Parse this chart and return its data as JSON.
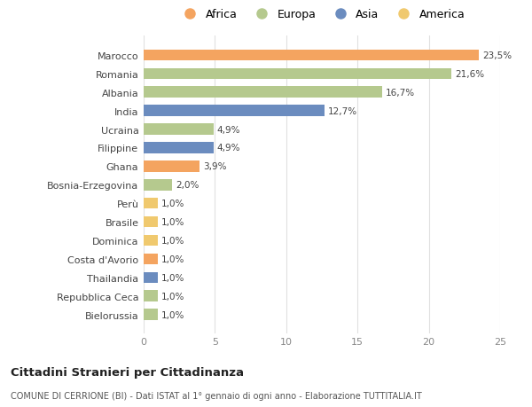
{
  "categories": [
    "Marocco",
    "Romania",
    "Albania",
    "India",
    "Ucraina",
    "Filippine",
    "Ghana",
    "Bosnia-Erzegovina",
    "Perù",
    "Brasile",
    "Dominica",
    "Costa d'Avorio",
    "Thailandia",
    "Repubblica Ceca",
    "Bielorussia"
  ],
  "values": [
    23.5,
    21.6,
    16.7,
    12.7,
    4.9,
    4.9,
    3.9,
    2.0,
    1.0,
    1.0,
    1.0,
    1.0,
    1.0,
    1.0,
    1.0
  ],
  "labels": [
    "23,5%",
    "21,6%",
    "16,7%",
    "12,7%",
    "4,9%",
    "4,9%",
    "3,9%",
    "2,0%",
    "1,0%",
    "1,0%",
    "1,0%",
    "1,0%",
    "1,0%",
    "1,0%",
    "1,0%"
  ],
  "continents": [
    "Africa",
    "Europa",
    "Europa",
    "Asia",
    "Europa",
    "Asia",
    "Africa",
    "Europa",
    "America",
    "America",
    "America",
    "Africa",
    "Asia",
    "Europa",
    "Europa"
  ],
  "continent_colors": {
    "Africa": "#F4A460",
    "Europa": "#B5C98E",
    "Asia": "#6B8CBF",
    "America": "#F0C96E"
  },
  "legend_order": [
    "Africa",
    "Europa",
    "Asia",
    "America"
  ],
  "title": "Cittadini Stranieri per Cittadinanza",
  "subtitle": "COMUNE DI CERRIONE (BI) - Dati ISTAT al 1° gennaio di ogni anno - Elaborazione TUTTITALIA.IT",
  "xlim": [
    0,
    25
  ],
  "xticks": [
    0,
    5,
    10,
    15,
    20,
    25
  ],
  "background_color": "#ffffff",
  "grid_color": "#e0e0e0"
}
